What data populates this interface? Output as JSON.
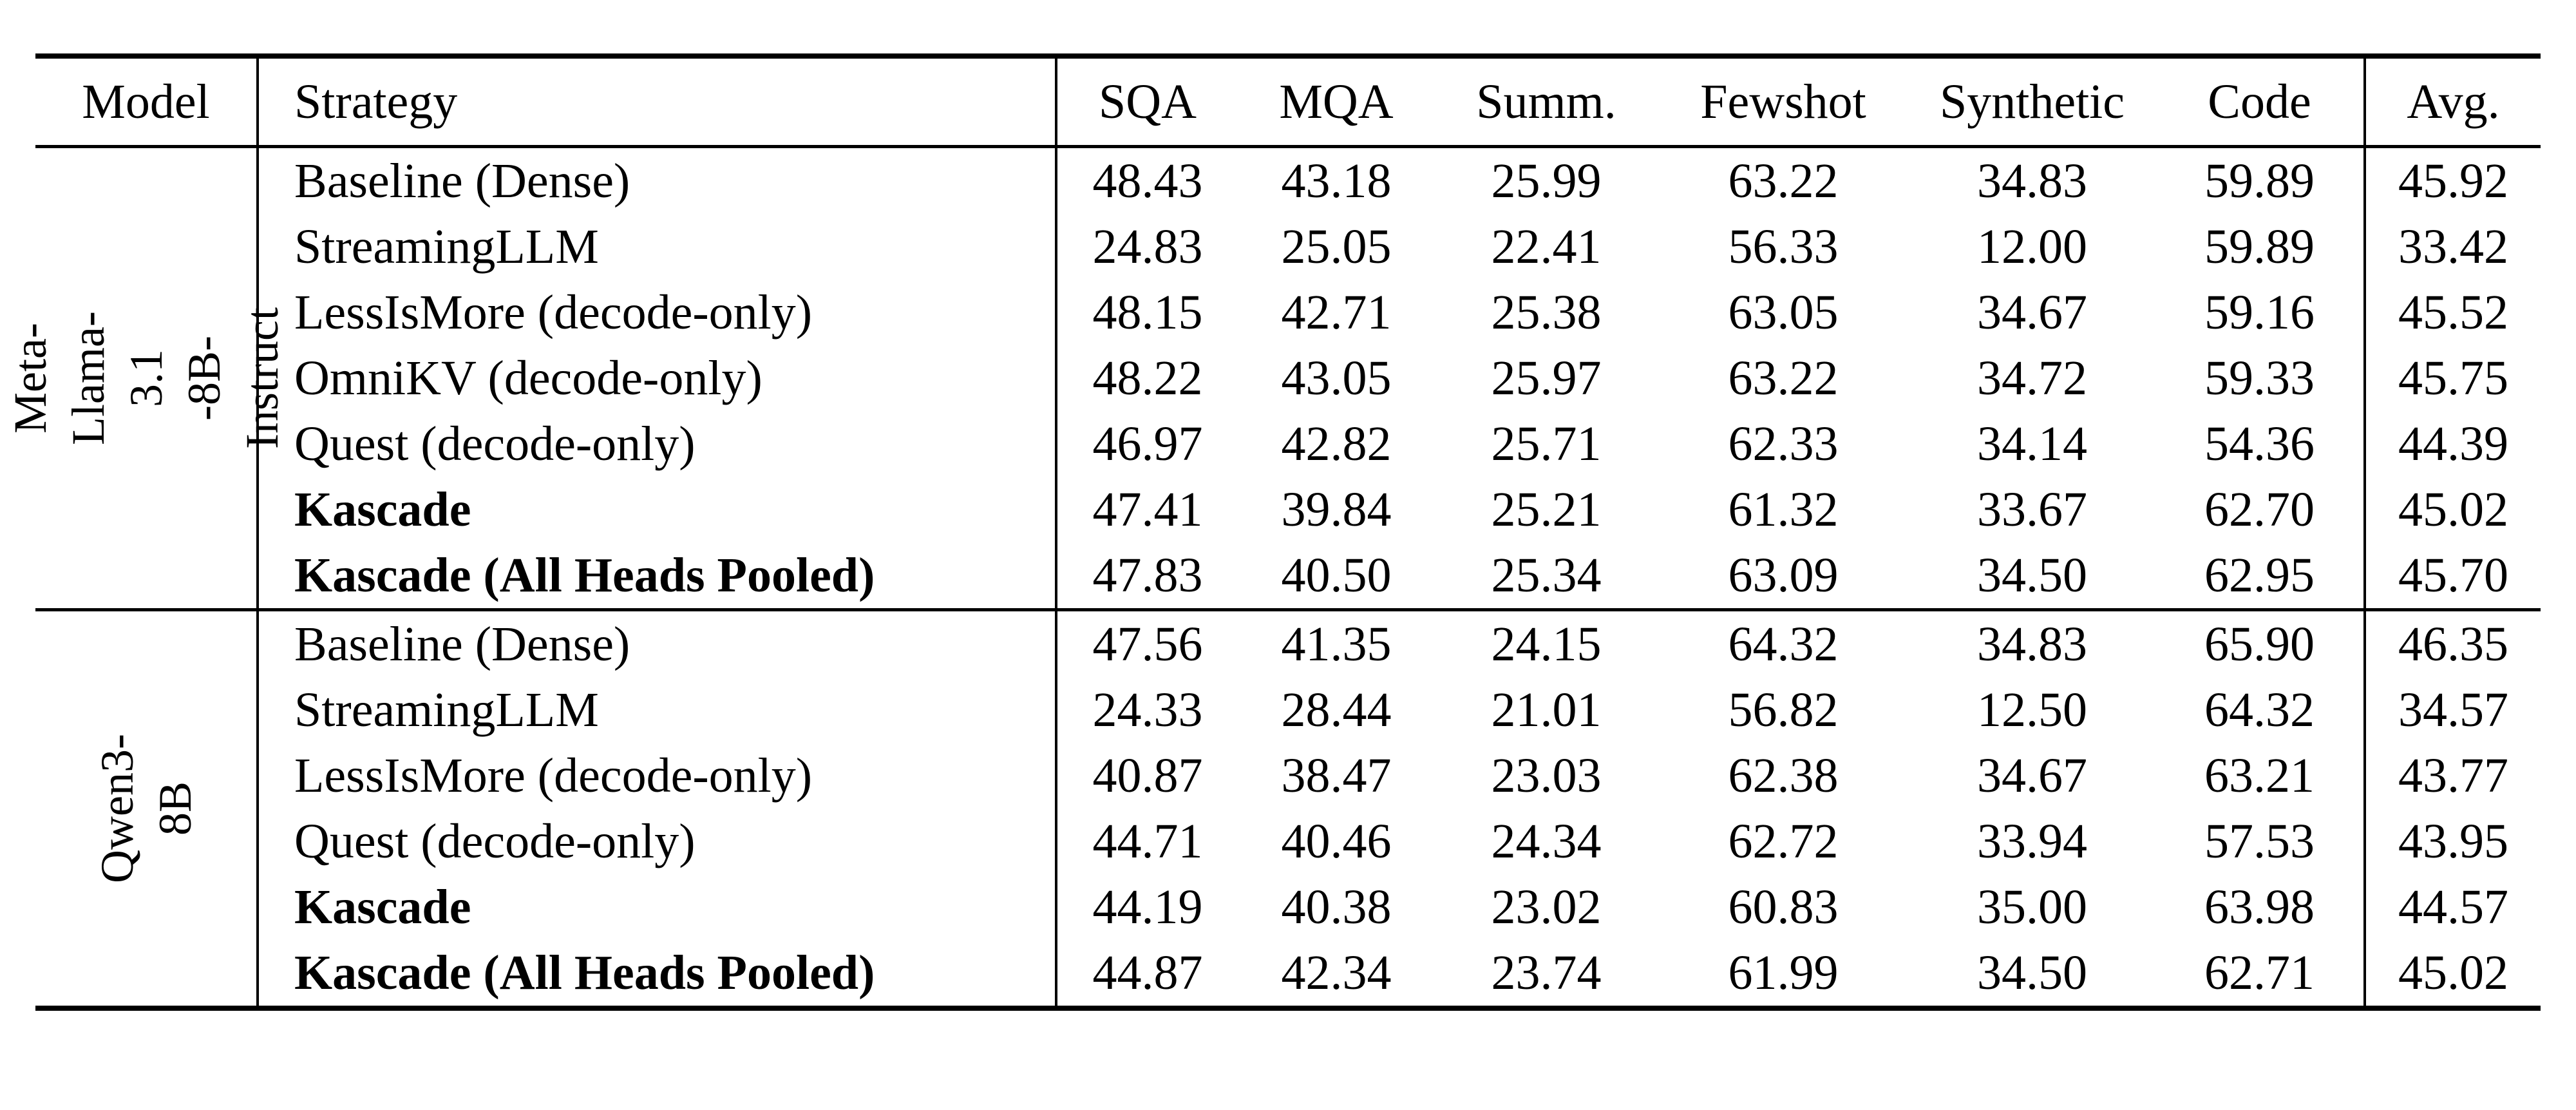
{
  "table": {
    "background": "#ffffff",
    "text_color": "#000000",
    "rule_color": "#000000",
    "columns": [
      {
        "key": "model",
        "label": "Model"
      },
      {
        "key": "strategy",
        "label": "Strategy"
      },
      {
        "key": "sqa",
        "label": "SQA"
      },
      {
        "key": "mqa",
        "label": "MQA"
      },
      {
        "key": "summ",
        "label": "Summ."
      },
      {
        "key": "fewshot",
        "label": "Fewshot"
      },
      {
        "key": "synthetic",
        "label": "Synthetic"
      },
      {
        "key": "code",
        "label": "Code"
      },
      {
        "key": "avg",
        "label": "Avg."
      }
    ],
    "groups": [
      {
        "model_label": "Meta-Llama-3.1\n-8B-Instruct",
        "rows": [
          {
            "strategy": "Baseline (Dense)",
            "bold": false,
            "values": [
              "48.43",
              "43.18",
              "25.99",
              "63.22",
              "34.83",
              "59.89",
              "45.92"
            ]
          },
          {
            "strategy": "StreamingLLM",
            "bold": false,
            "values": [
              "24.83",
              "25.05",
              "22.41",
              "56.33",
              "12.00",
              "59.89",
              "33.42"
            ]
          },
          {
            "strategy": "LessIsMore (decode-only)",
            "bold": false,
            "values": [
              "48.15",
              "42.71",
              "25.38",
              "63.05",
              "34.67",
              "59.16",
              "45.52"
            ]
          },
          {
            "strategy": "OmniKV (decode-only)",
            "bold": false,
            "values": [
              "48.22",
              "43.05",
              "25.97",
              "63.22",
              "34.72",
              "59.33",
              "45.75"
            ]
          },
          {
            "strategy": "Quest (decode-only)",
            "bold": false,
            "values": [
              "46.97",
              "42.82",
              "25.71",
              "62.33",
              "34.14",
              "54.36",
              "44.39"
            ]
          },
          {
            "strategy": "Kascade",
            "bold": true,
            "values": [
              "47.41",
              "39.84",
              "25.21",
              "61.32",
              "33.67",
              "62.70",
              "45.02"
            ]
          },
          {
            "strategy": "Kascade (All Heads Pooled)",
            "bold": true,
            "values": [
              "47.83",
              "40.50",
              "25.34",
              "63.09",
              "34.50",
              "62.95",
              "45.70"
            ]
          }
        ]
      },
      {
        "model_label": "Qwen3-8B",
        "rows": [
          {
            "strategy": "Baseline (Dense)",
            "bold": false,
            "values": [
              "47.56",
              "41.35",
              "24.15",
              "64.32",
              "34.83",
              "65.90",
              "46.35"
            ]
          },
          {
            "strategy": "StreamingLLM",
            "bold": false,
            "values": [
              "24.33",
              "28.44",
              "21.01",
              "56.82",
              "12.50",
              "64.32",
              "34.57"
            ]
          },
          {
            "strategy": "LessIsMore (decode-only)",
            "bold": false,
            "values": [
              "40.87",
              "38.47",
              "23.03",
              "62.38",
              "34.67",
              "63.21",
              "43.77"
            ]
          },
          {
            "strategy": "Quest (decode-only)",
            "bold": false,
            "values": [
              "44.71",
              "40.46",
              "24.34",
              "62.72",
              "33.94",
              "57.53",
              "43.95"
            ]
          },
          {
            "strategy": "Kascade",
            "bold": true,
            "values": [
              "44.19",
              "40.38",
              "23.02",
              "60.83",
              "35.00",
              "63.98",
              "44.57"
            ]
          },
          {
            "strategy": "Kascade (All Heads Pooled)",
            "bold": true,
            "values": [
              "44.87",
              "42.34",
              "23.74",
              "61.99",
              "34.50",
              "62.71",
              "45.02"
            ]
          }
        ]
      }
    ]
  }
}
